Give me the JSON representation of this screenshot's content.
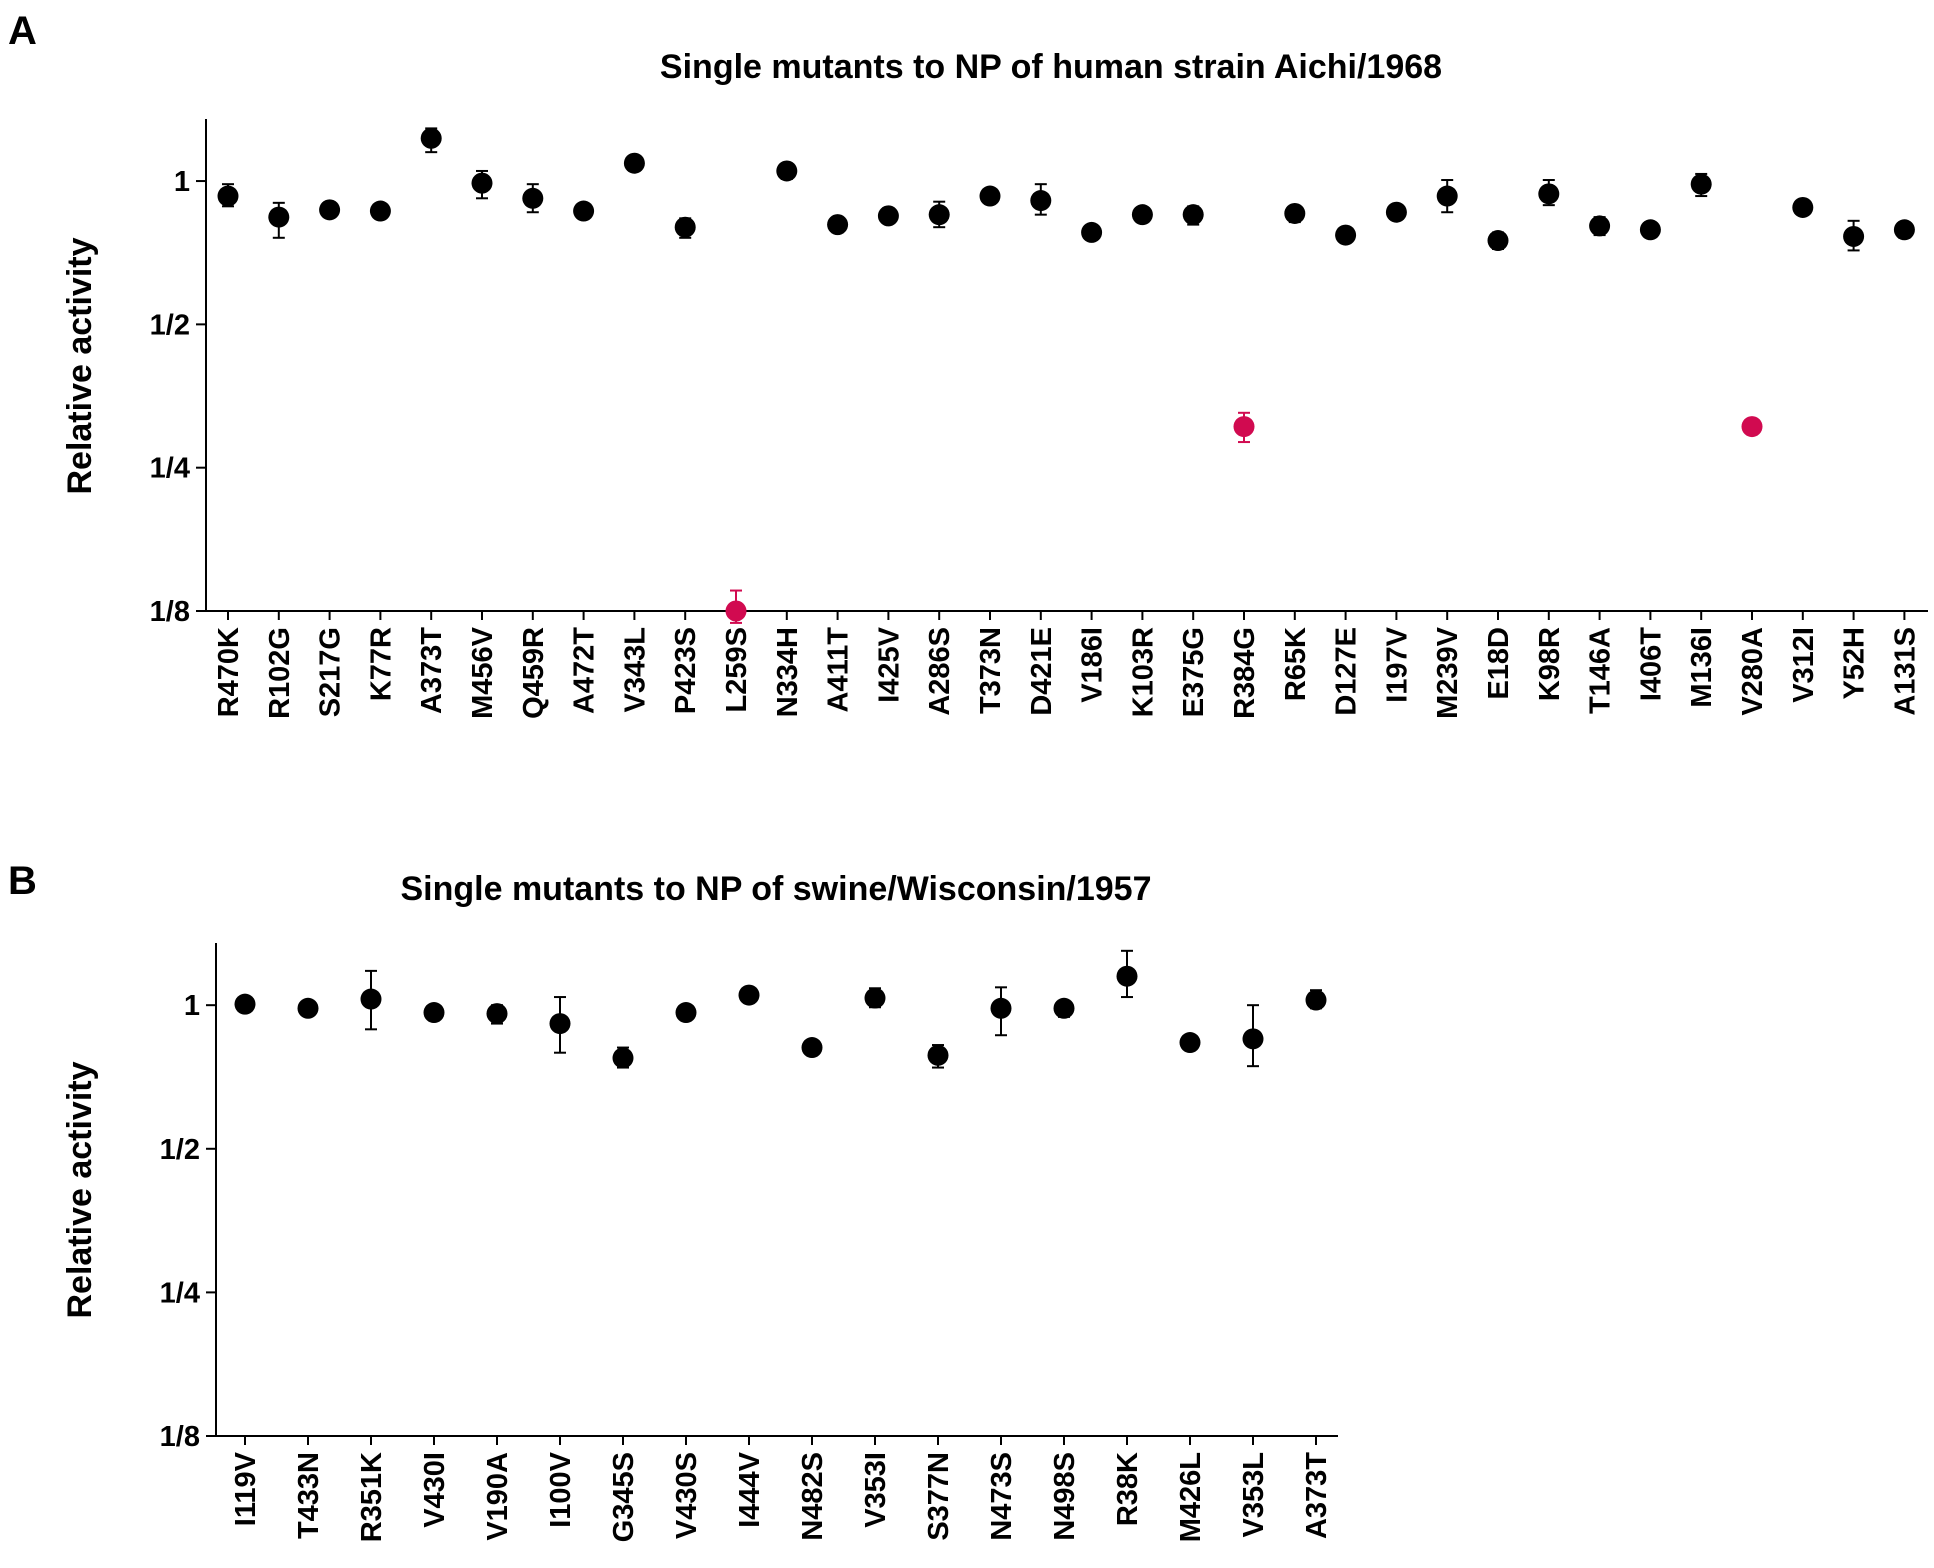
{
  "colors": {
    "normal": "#000000",
    "highlight": "#d10a50"
  },
  "panels": [
    {
      "letter": "A"
    },
    {
      "letter": "B"
    }
  ],
  "chart_data": [
    {
      "type": "scatter",
      "title": "Single mutants to NP of human strain Aichi/1968",
      "xlabel": "",
      "ylabel": "Relative activity",
      "yscale": "log2",
      "ylim": [
        0.125,
        1.35
      ],
      "yticks": [
        1,
        0.5,
        0.25,
        0.125
      ],
      "ytick_labels": [
        "1",
        "1/2",
        "1/4",
        "1/8"
      ],
      "grid": false,
      "categories": [
        "R470K",
        "R102G",
        "S217G",
        "K77R",
        "A373T",
        "M456V",
        "Q459R",
        "A472T",
        "V343L",
        "P423S",
        "L259S",
        "N334H",
        "A411T",
        "I425V",
        "A286S",
        "T373N",
        "D421E",
        "V186I",
        "K103R",
        "E375G",
        "R384G",
        "R65K",
        "D127E",
        "I197V",
        "M239V",
        "E18D",
        "K98R",
        "T146A",
        "I406T",
        "M136I",
        "V280A",
        "V312I",
        "Y52H",
        "A131S"
      ],
      "values": [
        0.93,
        0.84,
        0.87,
        0.865,
        1.23,
        0.99,
        0.92,
        0.865,
        1.09,
        0.8,
        0.125,
        1.05,
        0.81,
        0.845,
        0.85,
        0.93,
        0.91,
        0.78,
        0.85,
        0.85,
        0.305,
        0.855,
        0.77,
        0.86,
        0.93,
        0.75,
        0.94,
        0.805,
        0.79,
        0.985,
        0.305,
        0.88,
        0.765,
        0.79
      ],
      "err_low": [
        0.885,
        0.76,
        0.87,
        0.84,
        1.15,
        0.92,
        0.86,
        0.865,
        1.05,
        0.76,
        0.118,
        1.01,
        0.78,
        0.82,
        0.8,
        0.9,
        0.85,
        0.78,
        0.85,
        0.81,
        0.283,
        0.82,
        0.745,
        0.83,
        0.86,
        0.72,
        0.89,
        0.77,
        0.79,
        0.93,
        0.294,
        0.86,
        0.715,
        0.76
      ],
      "err_high": [
        0.985,
        0.9,
        0.87,
        0.89,
        1.29,
        1.05,
        0.985,
        0.865,
        1.125,
        0.835,
        0.138,
        1.075,
        0.835,
        0.875,
        0.905,
        0.96,
        0.985,
        0.78,
        0.85,
        0.885,
        0.326,
        0.88,
        0.795,
        0.89,
        1.005,
        0.78,
        1.005,
        0.84,
        0.79,
        1.035,
        0.315,
        0.905,
        0.825,
        0.815
      ],
      "highlight": [
        "L259S",
        "R384G",
        "V280A"
      ]
    },
    {
      "type": "scatter",
      "title": "Single mutants to NP of swine/Wisconsin/1957",
      "xlabel": "",
      "ylabel": "Relative activity",
      "yscale": "log2",
      "ylim": [
        0.125,
        1.35
      ],
      "yticks": [
        1,
        0.5,
        0.25,
        0.125
      ],
      "ytick_labels": [
        "1",
        "1/2",
        "1/4",
        "1/8"
      ],
      "grid": false,
      "categories": [
        "I119V",
        "T433N",
        "R351K",
        "V430I",
        "V190A",
        "I100V",
        "G345S",
        "V430S",
        "I444V",
        "N482S",
        "V353I",
        "S377N",
        "N473S",
        "N498S",
        "R38K",
        "M426L",
        "V353L",
        "A373T"
      ],
      "values": [
        1.005,
        0.985,
        1.03,
        0.965,
        0.96,
        0.915,
        0.775,
        0.965,
        1.05,
        0.815,
        1.035,
        0.785,
        0.985,
        0.985,
        1.15,
        0.835,
        0.85,
        1.025
      ],
      "err_low": [
        1.005,
        0.985,
        0.89,
        0.93,
        0.915,
        0.795,
        0.74,
        0.965,
        1.05,
        0.79,
        0.99,
        0.74,
        0.865,
        0.945,
        1.04,
        0.835,
        0.745,
        0.985
      ],
      "err_high": [
        1.005,
        0.985,
        1.18,
        0.995,
        1.0,
        1.04,
        0.815,
        0.965,
        1.05,
        0.845,
        1.085,
        0.825,
        1.09,
        1.02,
        1.3,
        0.835,
        1.0,
        1.075
      ],
      "highlight": []
    }
  ]
}
